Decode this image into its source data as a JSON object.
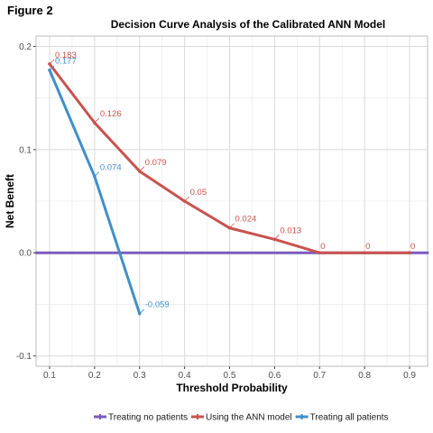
{
  "figure_label": "Figure 2",
  "chart_data": {
    "type": "line",
    "title": "Decision Curve Analysis of the Calibrated ANN Model",
    "xlabel": "Threshold Probability",
    "ylabel": "Net Beneft",
    "xlim": [
      0.07,
      0.94
    ],
    "ylim": [
      -0.11,
      0.21
    ],
    "x_ticks": [
      "0.1",
      "0.2",
      "0.3",
      "0.4",
      "0.5",
      "0.6",
      "0.7",
      "0.8",
      "0.9"
    ],
    "y_ticks": [
      "-0.1",
      "0.0",
      "0.1",
      "0.2"
    ],
    "grid": true,
    "legend_position": "bottom",
    "series": [
      {
        "name": "Treating no patients",
        "color": "#7b5bbf",
        "points": [
          {
            "x": 0.07,
            "y": 0
          },
          {
            "x": 0.94,
            "y": 0
          }
        ]
      },
      {
        "name": "Using the ANN model",
        "color": "#c9524e",
        "points": [
          {
            "x": 0.1,
            "y": 0.183,
            "label": "0.183"
          },
          {
            "x": 0.2,
            "y": 0.126,
            "label": "0.126"
          },
          {
            "x": 0.3,
            "y": 0.079,
            "label": "0.079"
          },
          {
            "x": 0.4,
            "y": 0.05,
            "label": "0.05"
          },
          {
            "x": 0.5,
            "y": 0.024,
            "label": "0.024"
          },
          {
            "x": 0.6,
            "y": 0.013,
            "label": "0.013"
          },
          {
            "x": 0.7,
            "y": 0,
            "label": "0"
          },
          {
            "x": 0.8,
            "y": 0,
            "label": "0"
          },
          {
            "x": 0.9,
            "y": 0,
            "label": "0"
          }
        ]
      },
      {
        "name": "Treating all patients",
        "color": "#3f8fcc",
        "points": [
          {
            "x": 0.1,
            "y": 0.177,
            "label": "0.177"
          },
          {
            "x": 0.2,
            "y": 0.074,
            "label": "0.074"
          },
          {
            "x": 0.3,
            "y": -0.059,
            "label": "-0.059"
          }
        ]
      }
    ]
  }
}
